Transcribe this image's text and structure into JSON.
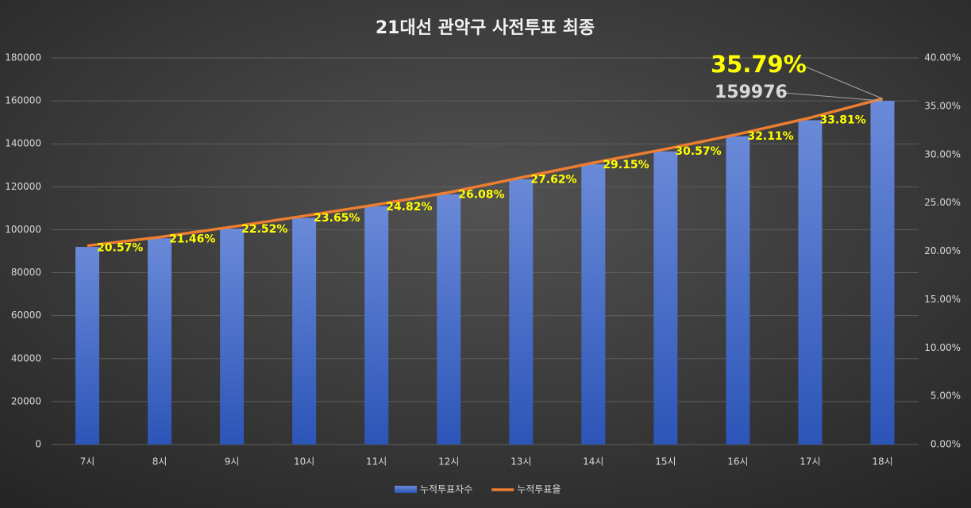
{
  "chart_data": {
    "type": "bar-line",
    "title": "21대선 관악구 사전투표 최종",
    "categories": [
      "7시",
      "8시",
      "9시",
      "10시",
      "11시",
      "12시",
      "13시",
      "14시",
      "15시",
      "16시",
      "17시",
      "18시"
    ],
    "series": [
      {
        "name": "누적투표자수",
        "type": "bar",
        "color": "#4a72d0",
        "values": [
          92000,
          96000,
          100500,
          105500,
          111000,
          116500,
          123500,
          130500,
          136500,
          143500,
          151000,
          159976
        ]
      },
      {
        "name": "누적투표율",
        "type": "line",
        "axis": "y2",
        "color": "#ed7d31",
        "values": [
          20.57,
          21.46,
          22.52,
          23.65,
          24.82,
          26.08,
          27.62,
          29.15,
          30.57,
          32.11,
          33.81,
          35.79
        ],
        "value_labels": [
          "20.57%",
          "21.46%",
          "22.52%",
          "23.65%",
          "24.82%",
          "26.08%",
          "27.62%",
          "29.15%",
          "30.57%",
          "32.11%",
          "33.81%",
          "35.79%"
        ]
      }
    ],
    "ylim": [
      0,
      180000
    ],
    "yticks": [
      0,
      20000,
      40000,
      60000,
      80000,
      100000,
      120000,
      140000,
      160000,
      180000
    ],
    "y2lim": [
      0,
      40
    ],
    "y2ticks": [
      {
        "value": 0,
        "label": "0.00%"
      },
      {
        "value": 5,
        "label": "5.00%"
      },
      {
        "value": 10,
        "label": "10.00%"
      },
      {
        "value": 15,
        "label": "15.00%"
      },
      {
        "value": 20,
        "label": "20.00%"
      },
      {
        "value": 25,
        "label": "25.00%"
      },
      {
        "value": 30,
        "label": "30.00%"
      },
      {
        "value": 35,
        "label": "35.00%"
      },
      {
        "value": 40,
        "label": "40.00%"
      }
    ],
    "grid": true,
    "legend": "bottom"
  }
}
